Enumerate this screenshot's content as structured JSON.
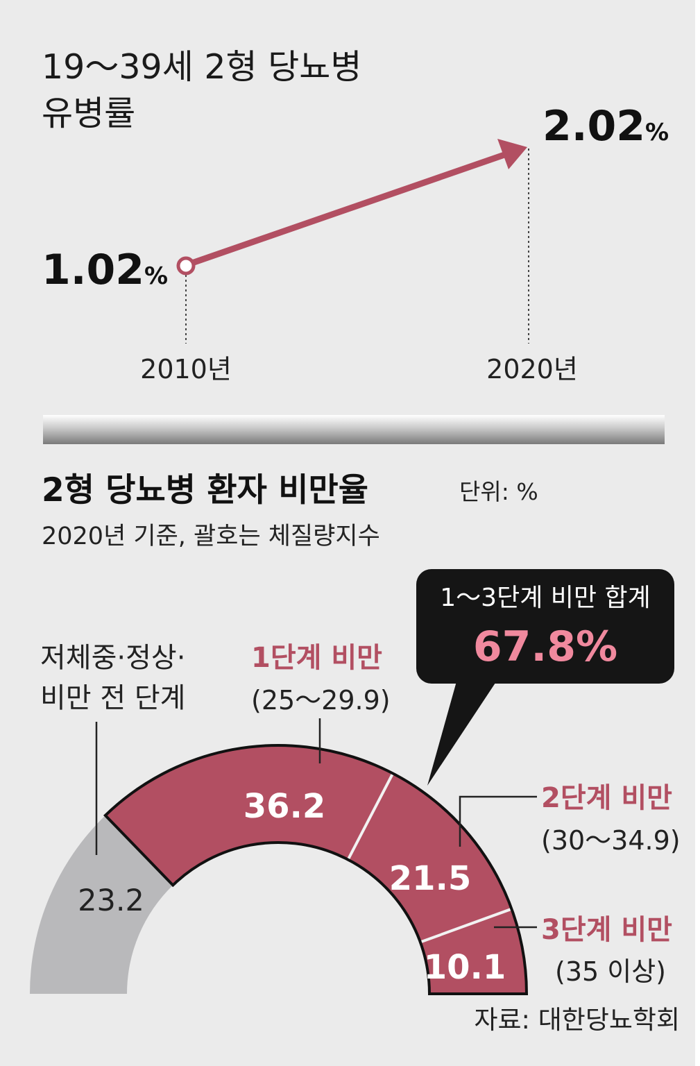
{
  "colors": {
    "background": "#ebebeb",
    "accent": "#b24f62",
    "gray_segment": "#b9b9bb",
    "callout_bg": "#151515",
    "callout_value": "#f0899e",
    "text": "#1a1a1a"
  },
  "chart_data": [
    {
      "type": "line",
      "title_lines": [
        "19～39세 2형 당뇨병",
        "유병률"
      ],
      "x": [
        "2010년",
        "2020년"
      ],
      "values": [
        1.02,
        2.02
      ],
      "value_labels": [
        {
          "number": "1.02",
          "unit": "%"
        },
        {
          "number": "2.02",
          "unit": "%"
        }
      ]
    },
    {
      "type": "pie",
      "style": "half-donut",
      "title": "2형 당뇨병 환자 비만율",
      "unit_label": "단위: %",
      "subtitle": "2020년 기준, 괄호는 체질량지수",
      "segments": [
        {
          "label_lines": [
            "저체중·정상·",
            "비만 전 단계"
          ],
          "range": "",
          "value": 23.2,
          "value_label": "23.2",
          "color": "#b9b9bb"
        },
        {
          "label_lines": [
            "1단계 비만"
          ],
          "range": "(25～29.9)",
          "value": 36.2,
          "value_label": "36.2",
          "color": "#b24f62"
        },
        {
          "label_lines": [
            "2단계 비만"
          ],
          "range": "(30～34.9)",
          "value": 21.5,
          "value_label": "21.5",
          "color": "#b24f62"
        },
        {
          "label_lines": [
            "3단계 비만"
          ],
          "range": "(35 이상)",
          "value": 10.1,
          "value_label": "10.1",
          "color": "#b24f62"
        }
      ],
      "callout": {
        "title": "1～3단계 비만 합계",
        "value": "67.8%"
      },
      "source": "자료: 대한당뇨학회"
    }
  ]
}
